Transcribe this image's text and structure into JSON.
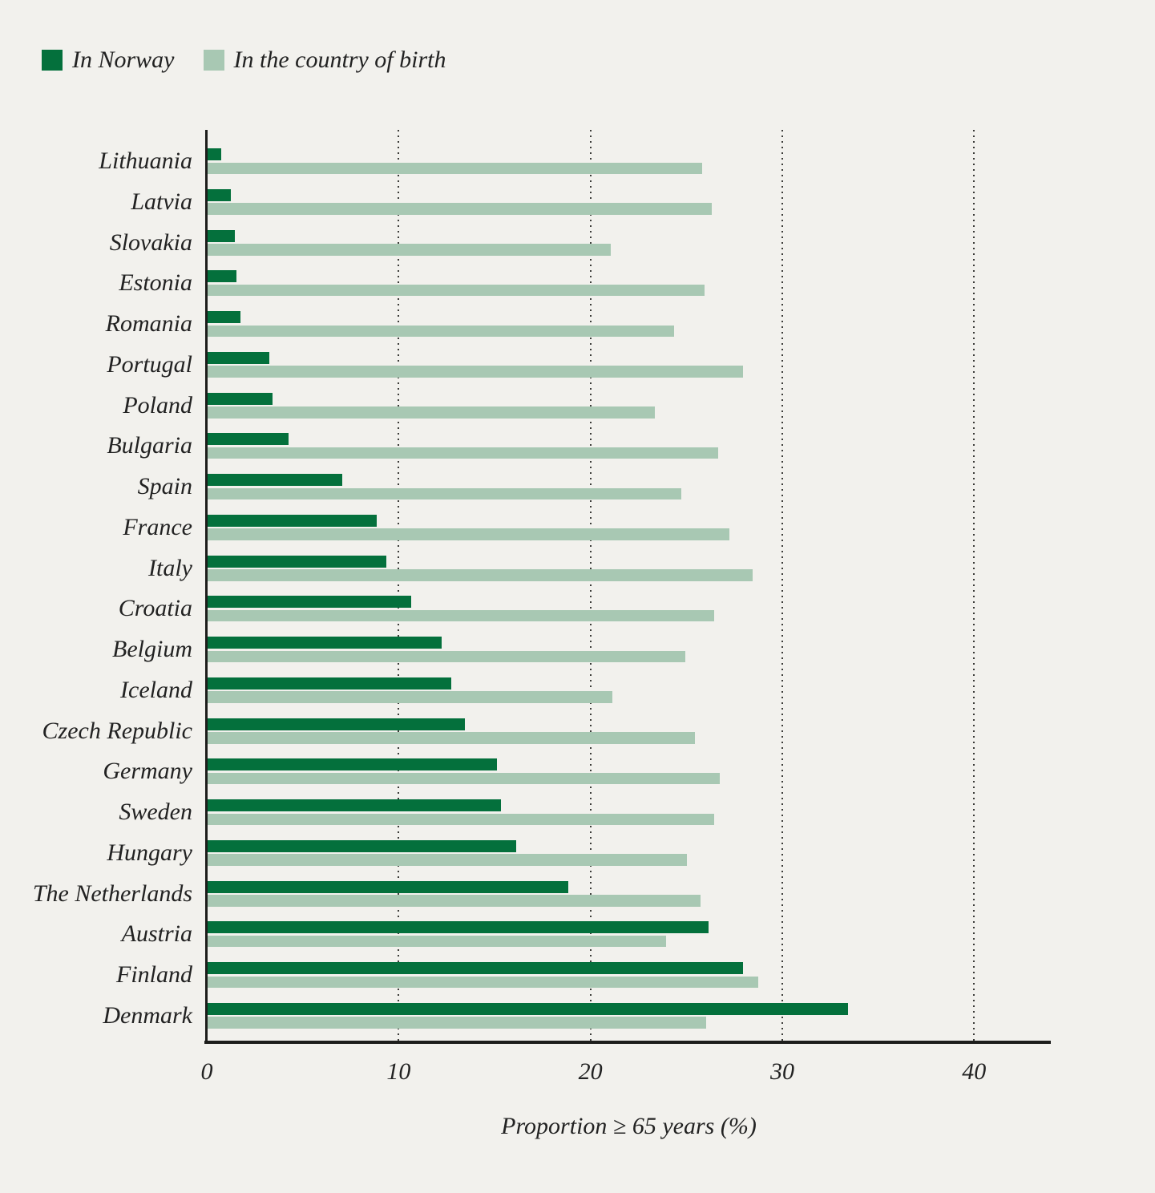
{
  "legend": {
    "items": [
      {
        "label": "In Norway",
        "color": "#04703c"
      },
      {
        "label": "In the country of birth",
        "color": "#a8c8b3"
      }
    ]
  },
  "axis": {
    "x_title": "Proportion ≥ 65 years (%)",
    "x_ticks": [
      0,
      10,
      20,
      30,
      40
    ],
    "x_max": 44
  },
  "colors": {
    "background": "#f2f1ed",
    "axis_line": "#1d1d1b",
    "grid_dots": "#3b3b38",
    "text": "#222222",
    "bar_dark_green": "#04703c",
    "bar_light_green": "#a8c8b3"
  },
  "chart_data": {
    "type": "bar",
    "orientation": "horizontal",
    "title": "",
    "xlabel": "Proportion ≥ 65 years (%)",
    "ylabel": "",
    "unit": "%",
    "xlim": [
      0,
      44
    ],
    "x_ticks": [
      0,
      10,
      20,
      30,
      40
    ],
    "grid": "dotted vertical gridlines at 10, 20, 30, 40",
    "legend_position": "top-left",
    "categories": [
      "Lithuania",
      "Latvia",
      "Slovakia",
      "Estonia",
      "Romania",
      "Portugal",
      "Poland",
      "Bulgaria",
      "Spain",
      "France",
      "Italy",
      "Croatia",
      "Belgium",
      "Iceland",
      "Czech Republic",
      "Germany",
      "Sweden",
      "Hungary",
      "The Netherlands",
      "Austria",
      "Finland",
      "Denmark"
    ],
    "series": [
      {
        "name": "In Norway",
        "color": "#04703c",
        "values": [
          0.7,
          1.2,
          1.4,
          1.5,
          1.7,
          3.2,
          3.4,
          4.2,
          7.0,
          8.8,
          9.3,
          10.6,
          12.2,
          12.7,
          13.4,
          15.1,
          15.3,
          16.1,
          18.8,
          26.1,
          27.9,
          33.4
        ]
      },
      {
        "name": "In the country of birth",
        "color": "#a8c8b3",
        "values": [
          25.8,
          26.3,
          21.0,
          25.9,
          24.3,
          27.9,
          23.3,
          26.6,
          24.7,
          27.2,
          28.4,
          26.4,
          24.9,
          21.1,
          25.4,
          26.7,
          26.4,
          25.0,
          25.7,
          23.9,
          28.7,
          26.0
        ]
      }
    ]
  }
}
